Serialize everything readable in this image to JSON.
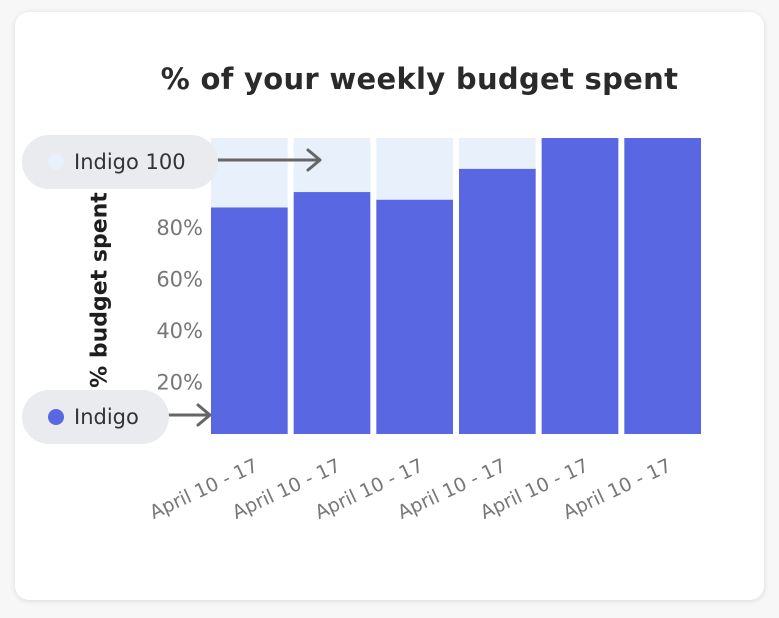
{
  "chart_data": {
    "type": "bar",
    "title": "% of your weekly budget spent",
    "ylabel": "% budget spent",
    "xlabel": "",
    "categories": [
      "April 10 - 17",
      "April 10 - 17",
      "April 10 - 17",
      "April 10 - 17",
      "April 10 - 17",
      "April 10 - 17"
    ],
    "series": [
      {
        "name": "Indigo",
        "values": [
          88,
          94,
          91,
          103,
          115,
          115
        ],
        "color": "#5a67e2"
      },
      {
        "name": "Indigo 100",
        "values": [
          100,
          100,
          100,
          100,
          100,
          100
        ],
        "color": "#e8f0fb"
      }
    ],
    "yticks": [
      "20%",
      "40%",
      "60%",
      "80%"
    ],
    "ytick_values": [
      20,
      40,
      60,
      80
    ],
    "ylim": [
      0,
      115
    ],
    "grid": false,
    "legend": "annotations on left with arrows"
  },
  "legend": {
    "indigo_100": {
      "label": "Indigo 100",
      "color": "#e8f0fb"
    },
    "indigo": {
      "label": "Indigo",
      "color": "#5a67e2"
    }
  }
}
